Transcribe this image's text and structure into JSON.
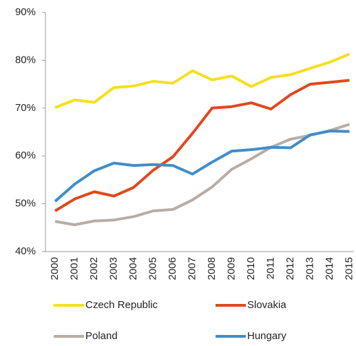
{
  "chart_data": {
    "type": "line",
    "categories": [
      "2000",
      "2001",
      "2002",
      "2003",
      "2004",
      "2005",
      "2006",
      "2007",
      "2008",
      "2009",
      "2010",
      "2011",
      "2012",
      "2013",
      "2014",
      "2015"
    ],
    "series": [
      {
        "name": "Czech Republic",
        "color": "#f5df1e",
        "values": [
          70.1,
          71.7,
          71.2,
          74.3,
          74.6,
          75.6,
          75.2,
          77.8,
          75.9,
          76.7,
          74.5,
          76.4,
          77.0,
          78.3,
          79.6,
          81.3
        ]
      },
      {
        "name": "Slovakia",
        "color": "#e2471d",
        "values": [
          48.5,
          51.0,
          52.5,
          51.6,
          53.4,
          57.0,
          59.8,
          64.7,
          70.0,
          70.3,
          71.1,
          69.8,
          72.8,
          75.0,
          75.4,
          75.8
        ]
      },
      {
        "name": "Poland",
        "color": "#b9aca3",
        "values": [
          46.3,
          45.6,
          46.4,
          46.6,
          47.3,
          48.5,
          48.8,
          50.8,
          53.5,
          57.2,
          59.4,
          61.8,
          63.5,
          64.3,
          65.3,
          66.6
        ]
      },
      {
        "name": "Hungary",
        "color": "#3f8dcb",
        "values": [
          50.5,
          54.1,
          56.9,
          58.5,
          58.0,
          58.2,
          58.0,
          56.2,
          58.7,
          61.0,
          61.3,
          61.8,
          61.7,
          64.4,
          65.2,
          65.1
        ]
      }
    ],
    "ylim": [
      40,
      90
    ],
    "yticks": [
      {
        "value": 40,
        "label": "40%"
      },
      {
        "value": 50,
        "label": "50%"
      },
      {
        "value": 60,
        "label": "60%"
      },
      {
        "value": 70,
        "label": "70%"
      },
      {
        "value": 80,
        "label": "80%"
      },
      {
        "value": 90,
        "label": "90%"
      }
    ],
    "grid": false
  }
}
